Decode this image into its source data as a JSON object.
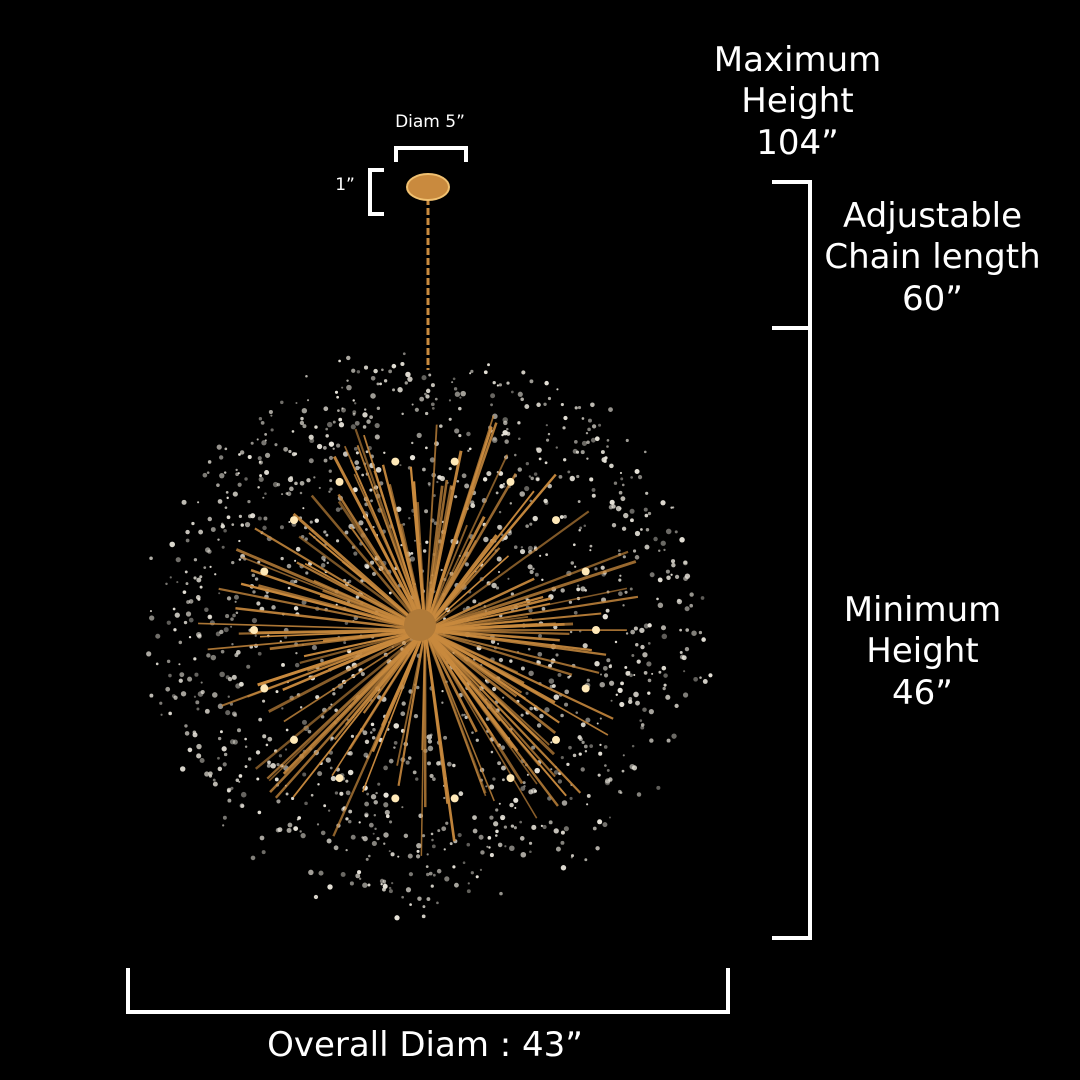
{
  "labels": {
    "canopy_diameter": "Diam 5”",
    "canopy_height": "1”",
    "max_height_line1": "Maximum",
    "max_height_line2": "Height",
    "max_height_value": "104”",
    "chain_line1": "Adjustable",
    "chain_line2": "Chain length",
    "chain_value": "60”",
    "min_height_line1": "Minimum",
    "min_height_line2": "Height",
    "min_height_value": "46”",
    "overall_diameter": "Overall Diam : 43”"
  },
  "colors": {
    "background": "#000000",
    "annotation": "#ffffff",
    "gold": "#c98a3e",
    "crystal": "#e8e4da"
  }
}
